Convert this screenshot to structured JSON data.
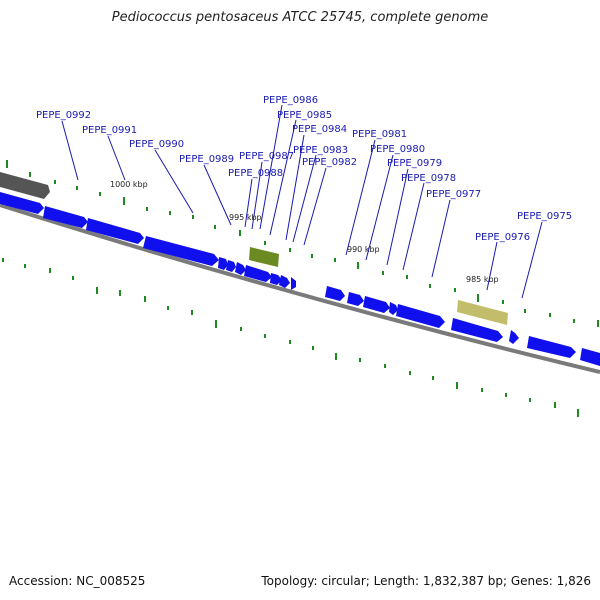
{
  "title": "Pediococcus pentosaceus ATCC 25745, complete genome",
  "footer": {
    "accession": "Accession: NC_008525",
    "summary": "Topology: circular; Length: 1,832,387 bp; Genes: 1,826"
  },
  "colors": {
    "gene": "#1010ee",
    "label": "#1a1ab0",
    "backbone": "#7a7a7a",
    "gc_tick": "#1f8a1f",
    "rna_olive": "#6b8a22",
    "rna_khaki": "#c2bd6a"
  },
  "scale_labels": [
    "1000 kbp",
    "995 kbp",
    "990 kbp",
    "985 kbp"
  ],
  "gene_labels": [
    "PEPE_0992",
    "PEPE_0991",
    "PEPE_0990",
    "PEPE_0989",
    "PEPE_0988",
    "PEPE_0987",
    "PEPE_0986",
    "PEPE_0985",
    "PEPE_0984",
    "PEPE_0983",
    "PEPE_0982",
    "PEPE_0981",
    "PEPE_0980",
    "PEPE_0979",
    "PEPE_0978",
    "PEPE_0977",
    "PEPE_0976",
    "PEPE_0975"
  ]
}
